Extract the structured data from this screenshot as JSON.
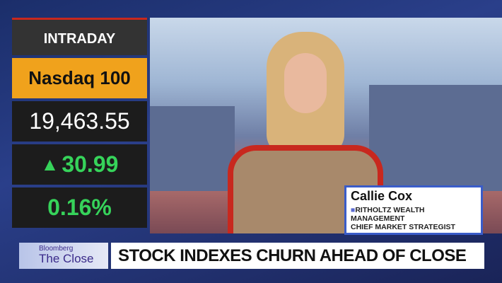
{
  "ticker": {
    "label": "INTRADAY",
    "index": "Nasdaq 100",
    "value": "19,463.55",
    "change": "30.99",
    "change_direction": "up",
    "percent": "0.16%",
    "up_color": "#36d35a",
    "index_bg": "#f0a21c"
  },
  "lower_third": {
    "name": "Callie Cox",
    "company": "RITHOLTZ WEALTH MANAGEMENT",
    "title": "CHIEF MARKET STRATEGIST"
  },
  "show": {
    "brand": "Bloomberg",
    "name": "The Close"
  },
  "headline": "STOCK INDEXES CHURN AHEAD OF CLOSE"
}
